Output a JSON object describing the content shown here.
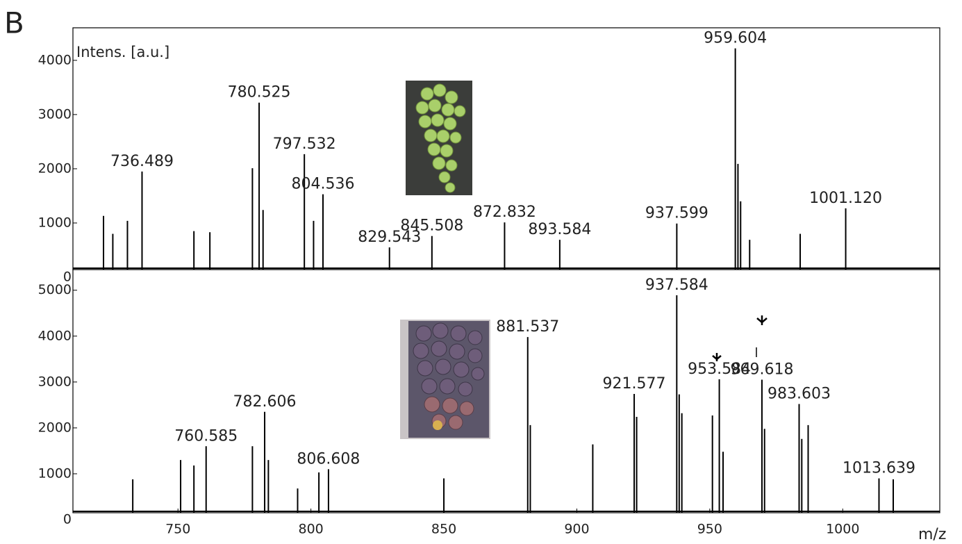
{
  "panel_label": "B",
  "chart_data": [
    {
      "type": "spectrum",
      "color": "#000000",
      "ylabel": "Intens. [a.u.]",
      "ylim": [
        0,
        4600
      ],
      "yticks": [
        0,
        1000,
        2000,
        3000,
        4000
      ],
      "x": [
        722,
        725.5,
        731,
        736.489,
        756,
        762,
        778,
        780.525,
        782,
        797.532,
        801,
        804.536,
        829.543,
        845.508,
        872.832,
        893.584,
        937.599,
        959.604,
        960.6,
        961.6,
        965,
        984,
        1001.12
      ],
      "values": [
        1130,
        800,
        1040,
        1950,
        850,
        830,
        2010,
        3220,
        1240,
        2270,
        1040,
        1530,
        550,
        760,
        1010,
        690,
        990,
        4220,
        2090,
        1400,
        690,
        800,
        1270
      ],
      "peak_labels": [
        null,
        null,
        null,
        "736.489",
        null,
        null,
        null,
        "780.525",
        null,
        "797.532",
        null,
        "804.536",
        "829.543",
        "845.508",
        "872.832",
        "893.584",
        "937.599",
        "959.604",
        null,
        null,
        null,
        null,
        "1001.120"
      ],
      "xlim": [
        710.5,
        1036.5
      ]
    },
    {
      "type": "spectrum",
      "color": "#000000",
      "xlabel": "m/z",
      "ylim": [
        0,
        5450
      ],
      "yticks": [
        0,
        1000,
        2000,
        3000,
        4000,
        5000
      ],
      "x": [
        733,
        751,
        756,
        760.585,
        778,
        782.606,
        784,
        795,
        803,
        806.608,
        850,
        881.537,
        882.5,
        906,
        921.577,
        922.5,
        937.584,
        938.5,
        939.5,
        951,
        953.584,
        955,
        969.618,
        970.6,
        983.603,
        984.6,
        987,
        1013.639,
        1019
      ],
      "values": [
        880,
        1300,
        1180,
        1600,
        1600,
        2350,
        1300,
        680,
        1030,
        1100,
        900,
        3980,
        2060,
        1640,
        2740,
        2240,
        4890,
        2730,
        2320,
        2270,
        3060,
        1480,
        3050,
        1980,
        2520,
        1760,
        2060,
        900,
        880
      ],
      "peak_labels": [
        null,
        null,
        null,
        "760.585",
        null,
        "782.606",
        null,
        null,
        null,
        "806.608",
        null,
        "881.537",
        null,
        null,
        "921.577",
        null,
        "937.584",
        null,
        null,
        null,
        "953.584",
        null,
        "969.618",
        null,
        "983.603",
        null,
        null,
        "1013.639",
        null
      ],
      "xlim": [
        710.5,
        1036.5
      ],
      "xticks": [
        750,
        800,
        850,
        900,
        950,
        1000
      ]
    }
  ]
}
